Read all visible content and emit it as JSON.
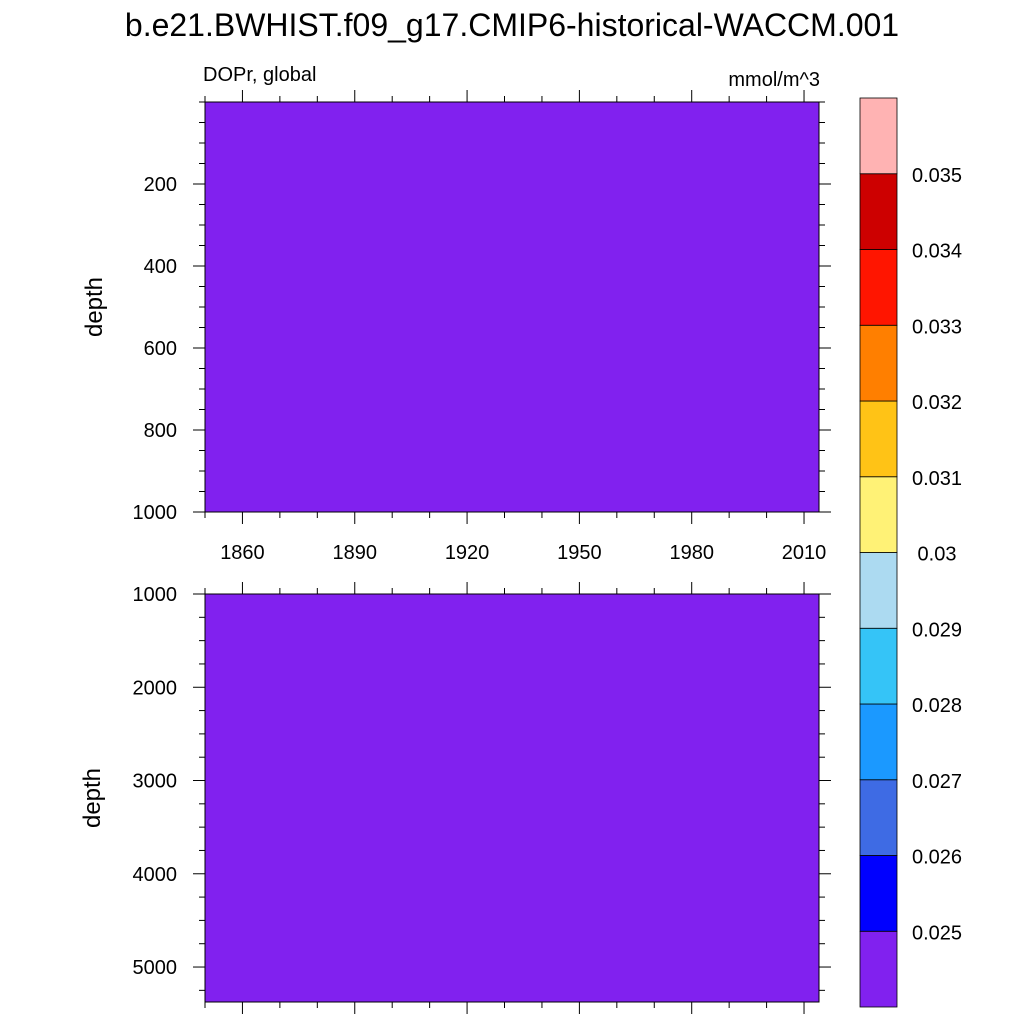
{
  "title": "b.e21.BWHIST.f09_g17.CMIP6-historical-WACCM.001",
  "variable_label": "DOPr, global",
  "units_label": "mmol/m^3",
  "chart_data": [
    {
      "type": "heatmap",
      "panel": "upper",
      "xlabel": "",
      "ylabel": "depth",
      "x_tick_labels": [
        "1860",
        "1890",
        "1920",
        "1950",
        "1980",
        "2010"
      ],
      "x_ticks": [
        1860,
        1890,
        1920,
        1950,
        1980,
        2010
      ],
      "xlim": [
        1850,
        2014
      ],
      "y_tick_labels": [
        "200",
        "400",
        "600",
        "800",
        "1000"
      ],
      "y_ticks": [
        200,
        400,
        600,
        800,
        1000
      ],
      "ylim": [
        0,
        1000
      ],
      "y_inverted": true,
      "field_level": "< 0.025",
      "field_color": "#8121ef"
    },
    {
      "type": "heatmap",
      "panel": "lower",
      "xlabel": "",
      "ylabel": "depth",
      "x_tick_labels": [],
      "x_ticks": [
        1860,
        1890,
        1920,
        1950,
        1980,
        2010
      ],
      "xlim": [
        1850,
        2014
      ],
      "y_tick_labels": [
        "1000",
        "2000",
        "3000",
        "4000",
        "5000"
      ],
      "y_ticks": [
        1000,
        2000,
        3000,
        4000,
        5000
      ],
      "ylim": [
        1000,
        5375
      ],
      "y_inverted": true,
      "field_level": "< 0.025",
      "field_color": "#8121ef"
    }
  ],
  "colorbar": {
    "labels": [
      "0.025",
      "0.026",
      "0.027",
      "0.028",
      "0.029",
      "0.03",
      "0.031",
      "0.032",
      "0.033",
      "0.034",
      "0.035"
    ],
    "levels": [
      0.025,
      0.026,
      0.027,
      0.028,
      0.029,
      0.03,
      0.031,
      0.032,
      0.033,
      0.034,
      0.035
    ],
    "colors_bottom_to_top": [
      "#8121ef",
      "#0000ff",
      "#3e6be4",
      "#1b99ff",
      "#35c4f7",
      "#acdaf1",
      "#fff276",
      "#ffc316",
      "#ff7f00",
      "#ff1500",
      "#cd0000",
      "#ffb3b3"
    ]
  }
}
